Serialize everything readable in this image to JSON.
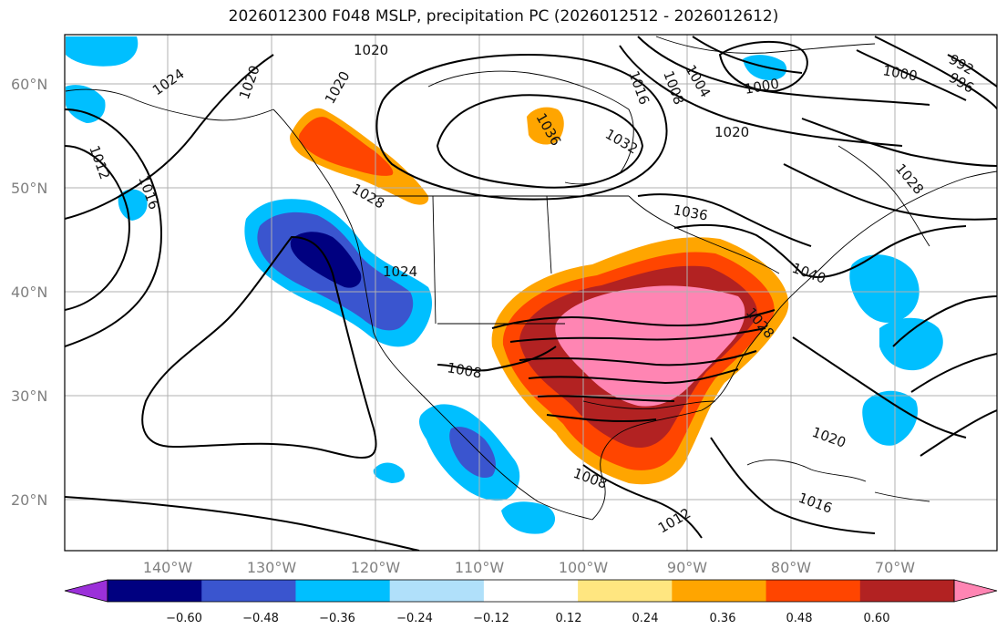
{
  "title": "2026012300 F048 MSLP, precipitation PC (2026012512 - 2026012612)",
  "map": {
    "lat_labels": [
      "60°N",
      "50°N",
      "40°N",
      "30°N",
      "20°N"
    ],
    "lon_labels": [
      "140°W",
      "130°W",
      "120°W",
      "110°W",
      "100°W",
      "90°W",
      "80°W",
      "70°W"
    ],
    "contour_labels": [
      "1020",
      "1024",
      "1020",
      "1020",
      "1008",
      "1016",
      "1004",
      "1000",
      "1000",
      "992",
      "996",
      "1036",
      "1032",
      "1020",
      "1028",
      "1012",
      "1016",
      "1028",
      "1036",
      "1024",
      "1040",
      "1028",
      "1008",
      "1020",
      "1008",
      "1016",
      "1012"
    ]
  },
  "colorbar": {
    "tick_labels": [
      "−0.60",
      "−0.48",
      "−0.36",
      "−0.24",
      "−0.12",
      "0.12",
      "0.24",
      "0.36",
      "0.48",
      "0.60"
    ],
    "colors": [
      "#9b30d9",
      "#000080",
      "#3a55cf",
      "#00bfff",
      "#b0e0fa",
      "#ffffff",
      "#ffe680",
      "#ffa500",
      "#ff4500",
      "#b22222",
      "#ff85b3"
    ]
  }
}
